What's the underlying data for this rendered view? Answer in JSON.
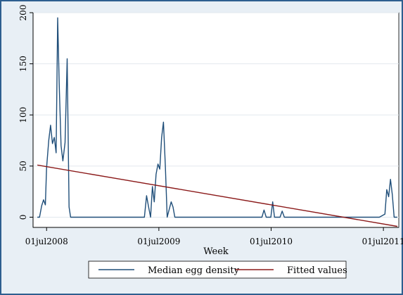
{
  "chart_data": {
    "type": "line",
    "title": "",
    "xlabel": "Week",
    "ylabel": "",
    "xlim": [
      "2008-05-18",
      "2011-08-20"
    ],
    "ylim": [
      -10,
      200
    ],
    "yticks": [
      0,
      50,
      100,
      150,
      200
    ],
    "xticks": [
      {
        "date": "2008-07-01",
        "label": "01jul2008"
      },
      {
        "date": "2009-07-01",
        "label": "01jul2009"
      },
      {
        "date": "2010-07-01",
        "label": "01jul2010"
      },
      {
        "date": "2011-07-01",
        "label": "01jul2011"
      }
    ],
    "grid": "horizontal",
    "legend_position": "bottom",
    "series": [
      {
        "name": "Median egg density",
        "color": "#1f4e79",
        "points": [
          [
            "2008-06-01",
            0
          ],
          [
            "2008-06-08",
            0
          ],
          [
            "2008-06-15",
            11
          ],
          [
            "2008-06-21",
            17
          ],
          [
            "2008-06-27",
            12
          ],
          [
            "2008-07-01",
            48
          ],
          [
            "2008-07-08",
            75
          ],
          [
            "2008-07-14",
            90
          ],
          [
            "2008-07-20",
            72
          ],
          [
            "2008-07-26",
            78
          ],
          [
            "2008-08-01",
            63
          ],
          [
            "2008-08-06",
            195
          ],
          [
            "2008-08-11",
            130
          ],
          [
            "2008-08-17",
            70
          ],
          [
            "2008-08-23",
            55
          ],
          [
            "2008-08-30",
            73
          ],
          [
            "2008-09-06",
            155
          ],
          [
            "2008-09-12",
            10
          ],
          [
            "2008-09-17",
            0
          ],
          [
            "2009-05-15",
            0
          ],
          [
            "2009-05-22",
            21
          ],
          [
            "2009-05-28",
            11
          ],
          [
            "2009-06-04",
            0
          ],
          [
            "2009-06-10",
            30
          ],
          [
            "2009-06-16",
            15
          ],
          [
            "2009-06-22",
            42
          ],
          [
            "2009-06-28",
            52
          ],
          [
            "2009-07-04",
            47
          ],
          [
            "2009-07-10",
            78
          ],
          [
            "2009-07-16",
            93
          ],
          [
            "2009-07-22",
            50
          ],
          [
            "2009-07-28",
            0
          ],
          [
            "2009-08-04",
            8
          ],
          [
            "2009-08-10",
            15
          ],
          [
            "2009-08-16",
            10
          ],
          [
            "2009-08-22",
            0
          ],
          [
            "2010-06-01",
            0
          ],
          [
            "2010-06-08",
            7
          ],
          [
            "2010-06-15",
            0
          ],
          [
            "2010-06-30",
            0
          ],
          [
            "2010-07-06",
            15
          ],
          [
            "2010-07-12",
            0
          ],
          [
            "2010-07-30",
            0
          ],
          [
            "2010-08-06",
            6
          ],
          [
            "2010-08-13",
            0
          ],
          [
            "2011-06-18",
            0
          ],
          [
            "2011-07-06",
            3
          ],
          [
            "2011-07-12",
            27
          ],
          [
            "2011-07-18",
            20
          ],
          [
            "2011-07-24",
            37
          ],
          [
            "2011-07-30",
            22
          ],
          [
            "2011-08-05",
            0
          ],
          [
            "2011-08-15",
            0
          ]
        ]
      },
      {
        "name": "Fitted values",
        "color": "#8b1a1a",
        "points": [
          [
            "2008-06-01",
            51
          ],
          [
            "2011-08-15",
            -9
          ]
        ]
      }
    ]
  }
}
